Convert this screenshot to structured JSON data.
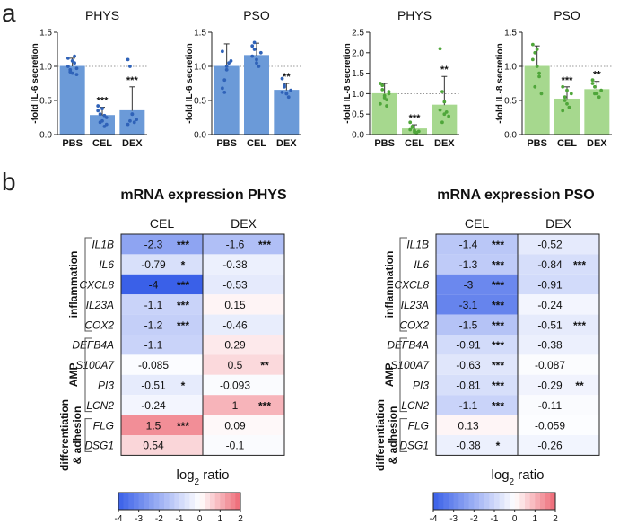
{
  "panel_a_label": "a",
  "panel_b_label": "b",
  "chart_data": [
    {
      "type": "bar",
      "title": "PHYS",
      "ylabel": "-fold IL-6 secretion",
      "categories": [
        "PBS",
        "CEL",
        "DEX"
      ],
      "values": [
        1.0,
        0.28,
        0.35
      ],
      "errors": [
        0.12,
        0.12,
        0.35
      ],
      "ylim": [
        0,
        1.5
      ],
      "yticks": [
        "0.0",
        "0.5",
        "1.0",
        "1.5"
      ],
      "reference_line": 1.0,
      "significance": [
        "",
        "***",
        "***"
      ],
      "color": "#6b9ad8",
      "dot_color": "#2f62b8",
      "points": [
        [
          1.12,
          0.95,
          0.9,
          1.05,
          0.88,
          1.0,
          0.92,
          1.08,
          1.15,
          0.97
        ],
        [
          0.42,
          0.3,
          0.2,
          0.12,
          0.25,
          0.35,
          0.18,
          0.38,
          0.28,
          0.15
        ],
        [
          1.1,
          1.0,
          0.3,
          0.18,
          0.22,
          0.15,
          0.2,
          0.3
        ]
      ]
    },
    {
      "type": "bar",
      "title": "PSO",
      "ylabel": "-fold IL-6 secretion",
      "categories": [
        "PBS",
        "CEL",
        "DEX"
      ],
      "values": [
        1.0,
        1.16,
        0.65
      ],
      "errors": [
        0.33,
        0.18,
        0.1
      ],
      "ylim": [
        0,
        1.5
      ],
      "yticks": [
        "0.0",
        "0.5",
        "1.0",
        "1.5"
      ],
      "reference_line": 1.0,
      "significance": [
        "",
        "",
        "**"
      ],
      "color": "#6b9ad8",
      "dot_color": "#2f62b8",
      "points": [
        [
          0.68,
          0.8,
          0.95,
          1.05,
          1.08,
          1.22,
          0.62,
          1.0
        ],
        [
          1.3,
          1.25,
          1.1,
          1.0,
          1.2,
          1.15,
          1.35,
          1.05
        ],
        [
          0.82,
          0.7,
          0.6,
          0.55,
          0.65,
          0.62,
          0.72,
          0.6
        ]
      ]
    },
    {
      "type": "bar",
      "title": "PHYS",
      "ylabel": "-fold IL-8 secretion",
      "categories": [
        "PBS",
        "CEL",
        "DEX"
      ],
      "values": [
        1.0,
        0.14,
        0.72
      ],
      "errors": [
        0.25,
        0.1,
        0.7
      ],
      "ylim": [
        0,
        2.5
      ],
      "yticks": [
        "0.0",
        "0.5",
        "1.0",
        "1.5",
        "2.0",
        "2.5"
      ],
      "reference_line": 1.0,
      "significance": [
        "",
        "***",
        "**"
      ],
      "color": "#a6d88e",
      "dot_color": "#4fa63a",
      "points": [
        [
          1.25,
          1.1,
          0.9,
          0.85,
          1.0,
          0.75,
          1.2,
          0.95,
          0.7,
          1.05
        ],
        [
          0.3,
          0.18,
          0.1,
          0.05,
          0.08,
          0.12,
          0.2,
          0.06
        ],
        [
          2.1,
          1.05,
          0.8,
          0.55,
          0.45,
          0.6,
          0.3,
          0.5
        ]
      ]
    },
    {
      "type": "bar",
      "title": "PSO",
      "ylabel": "-fold IL-8 secretion",
      "categories": [
        "PBS",
        "CEL",
        "DEX"
      ],
      "values": [
        1.0,
        0.52,
        0.66
      ],
      "errors": [
        0.3,
        0.18,
        0.12
      ],
      "ylim": [
        0,
        1.5
      ],
      "yticks": [
        "0.0",
        "0.5",
        "1.0",
        "1.5"
      ],
      "reference_line": 1.0,
      "significance": [
        "",
        "***",
        "**"
      ],
      "color": "#a6d88e",
      "dot_color": "#4fa63a",
      "points": [
        [
          1.32,
          1.2,
          1.0,
          0.85,
          0.6,
          1.1,
          0.7,
          1.25,
          0.9
        ],
        [
          0.7,
          0.55,
          0.45,
          0.4,
          0.6,
          0.35,
          0.5,
          0.65
        ],
        [
          0.8,
          0.7,
          0.6,
          0.55,
          0.65,
          0.75,
          0.6
        ]
      ]
    },
    {
      "type": "heatmap",
      "title": "mRNA expression PHYS",
      "columns": [
        "CEL",
        "DEX"
      ],
      "rows": [
        "IL1B",
        "IL6",
        "CXCL8",
        "IL23A",
        "COX2",
        "DEFB4A",
        "S100A7",
        "PI3",
        "LCN2",
        "FLG",
        "DSG1"
      ],
      "values": [
        [
          -2.3,
          -1.6
        ],
        [
          -0.79,
          -0.38
        ],
        [
          -4,
          -0.53
        ],
        [
          -1.1,
          0.15
        ],
        [
          -1.2,
          -0.46
        ],
        [
          -1.1,
          0.29
        ],
        [
          -0.085,
          0.5
        ],
        [
          -0.51,
          -0.093
        ],
        [
          -0.24,
          1
        ],
        [
          1.5,
          0.09
        ],
        [
          0.54,
          -0.1
        ]
      ],
      "labels": [
        [
          "-2.3",
          "-1.6"
        ],
        [
          "-0.79",
          "-0.38"
        ],
        [
          "-4",
          "-0.53"
        ],
        [
          "-1.1",
          "0.15"
        ],
        [
          "-1.2",
          "-0.46"
        ],
        [
          "-1.1",
          "0.29"
        ],
        [
          "-0.085",
          "0.5"
        ],
        [
          "-0.51",
          "-0.093"
        ],
        [
          "-0.24",
          "1"
        ],
        [
          "1.5",
          "0.09"
        ],
        [
          "0.54",
          "-0.1"
        ]
      ],
      "significance": [
        [
          "***",
          "***"
        ],
        [
          "*",
          ""
        ],
        [
          "***",
          ""
        ],
        [
          "***",
          ""
        ],
        [
          "***",
          ""
        ],
        [
          "",
          ""
        ],
        [
          "",
          "**"
        ],
        [
          "*",
          ""
        ],
        [
          "",
          "***"
        ],
        [
          "***",
          ""
        ],
        [
          "",
          ""
        ]
      ],
      "groups": [
        {
          "label": "inflammation",
          "start": 0,
          "end": 4
        },
        {
          "label": "AMP",
          "start": 5,
          "end": 8
        },
        {
          "label": "differentiation",
          "label2": "& adhesion",
          "start": 9,
          "end": 10
        }
      ],
      "colorbar": {
        "label_main": "log",
        "label_sub": "2",
        "label_rest": " ratio",
        "ticks": [
          "-4",
          "-3",
          "-2",
          "-1",
          "0",
          "1",
          "2"
        ],
        "range": [
          -4,
          2
        ]
      }
    },
    {
      "type": "heatmap",
      "title": "mRNA expression PSO",
      "columns": [
        "CEL",
        "DEX"
      ],
      "rows": [
        "IL1B",
        "IL6",
        "CXCL8",
        "IL23A",
        "COX2",
        "DEFB4A",
        "S100A7",
        "PI3",
        "LCN2",
        "FLG",
        "DSG1"
      ],
      "values": [
        [
          -1.4,
          -0.52
        ],
        [
          -1.3,
          -0.84
        ],
        [
          -3,
          -0.91
        ],
        [
          -3.1,
          -0.24
        ],
        [
          -1.5,
          -0.51
        ],
        [
          -0.91,
          -0.38
        ],
        [
          -0.63,
          -0.087
        ],
        [
          -0.81,
          -0.29
        ],
        [
          -1.1,
          -0.11
        ],
        [
          0.13,
          -0.059
        ],
        [
          -0.38,
          -0.26
        ]
      ],
      "labels": [
        [
          "-1.4",
          "-0.52"
        ],
        [
          "-1.3",
          "-0.84"
        ],
        [
          "-3",
          "-0.91"
        ],
        [
          "-3.1",
          "-0.24"
        ],
        [
          "-1.5",
          "-0.51"
        ],
        [
          "-0.91",
          "-0.38"
        ],
        [
          "-0.63",
          "-0.087"
        ],
        [
          "-0.81",
          "-0.29"
        ],
        [
          "-1.1",
          "-0.11"
        ],
        [
          "0.13",
          "-0.059"
        ],
        [
          "-0.38",
          "-0.26"
        ]
      ],
      "significance": [
        [
          "***",
          ""
        ],
        [
          "***",
          "***"
        ],
        [
          "***",
          ""
        ],
        [
          "***",
          ""
        ],
        [
          "***",
          "***"
        ],
        [
          "***",
          ""
        ],
        [
          "***",
          ""
        ],
        [
          "***",
          "**"
        ],
        [
          "***",
          ""
        ],
        [
          "",
          ""
        ],
        [
          "*",
          ""
        ]
      ],
      "groups": [
        {
          "label": "inflammation",
          "start": 0,
          "end": 4
        },
        {
          "label": "AMP",
          "start": 5,
          "end": 8
        },
        {
          "label": "differentiation",
          "label2": "& adhesion",
          "start": 9,
          "end": 10
        }
      ],
      "colorbar": {
        "label_main": "log",
        "label_sub": "2",
        "label_rest": " ratio",
        "ticks": [
          "-4",
          "-3",
          "-2",
          "-1",
          "0",
          "1",
          "2"
        ],
        "range": [
          -4,
          2
        ]
      }
    }
  ]
}
